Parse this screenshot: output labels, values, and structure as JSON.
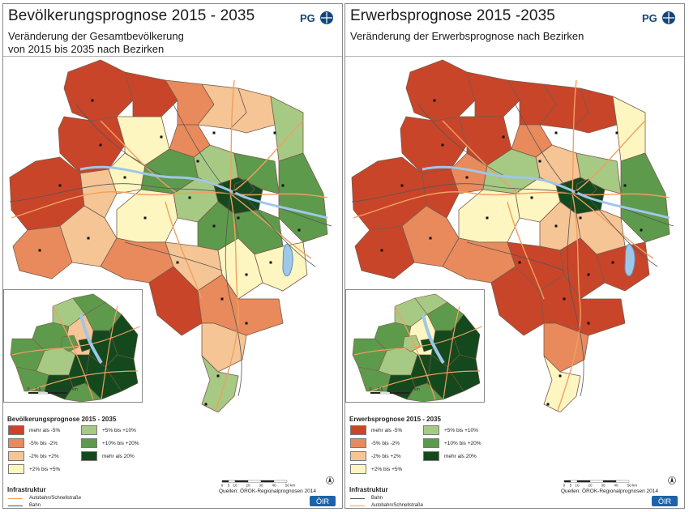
{
  "colors": {
    "c1": "#c8452a",
    "c2": "#e88a5c",
    "c3": "#f5c596",
    "c4": "#fdf6c1",
    "c5": "#a6c984",
    "c6": "#5e9a4c",
    "c7": "#14491e",
    "border": "#7a5a4a",
    "road": "#f0a060",
    "rail": "#555555",
    "water": "#9fc7e8"
  },
  "left": {
    "title": "Bevölkerungsprognose 2015 - 2035",
    "subtitle_line1": "Veränderung der Gesamtbevölkerung",
    "subtitle_line2": "von 2015 bis 2035 nach Bezirken",
    "logo": "PG",
    "legend_title": "Bevölkerungsprognose 2015 - 2035",
    "infra_title": "Infrastruktur",
    "infra_items": [
      {
        "label": "Autobahn/Schnellstraße",
        "color": "#f0a060"
      },
      {
        "label": "Bahn",
        "color": "#555555"
      }
    ],
    "source": "Quellen: ÖROK-Regionalprognosen 2014",
    "scale_labels": [
      "0",
      "5",
      "10",
      "20",
      "30",
      "40",
      "50 km"
    ],
    "inset_scale_labels": [
      "0",
      "2,5",
      "5",
      "10 km"
    ],
    "oir": "ÖIR"
  },
  "right": {
    "title": "Erwerbsprognose 2015 -2035",
    "subtitle_line1": "Veränderung der Erwerbsprognose nach Bezirken",
    "logo": "PG",
    "legend_title": "Erwerbsprognose 2015 - 2035",
    "infra_title": "Infrastruktur",
    "infra_items": [
      {
        "label": "Bahn",
        "color": "#555555"
      },
      {
        "label": "Autobahn/Schnellstraße",
        "color": "#f0a060"
      }
    ],
    "source": "Quellen: ÖROK-Regionalprognosen 2014",
    "scale_labels": [
      "0",
      "5",
      "10",
      "20",
      "30",
      "40",
      "50 km"
    ],
    "inset_scale_labels": [
      "0",
      "2,5",
      "5",
      "10 km"
    ],
    "oir": "ÖIR"
  },
  "legend_classes": [
    {
      "label": "mehr als -5%",
      "color": "#c8452a"
    },
    {
      "label": "-5% bis -2%",
      "color": "#e88a5c"
    },
    {
      "label": "-2% bis +2%",
      "color": "#f5c596"
    },
    {
      "label": "+2% bis +5%",
      "color": "#fdf6c1"
    },
    {
      "label": "+5% bis +10%",
      "color": "#a6c984"
    },
    {
      "label": "+10% bis +20%",
      "color": "#5e9a4c"
    },
    {
      "label": "mehr als 20%",
      "color": "#14491e"
    }
  ],
  "district_values_left": [
    1,
    1,
    2,
    1,
    1,
    3,
    2,
    4,
    3,
    4,
    5,
    5,
    3,
    6,
    7,
    6,
    6,
    5,
    3,
    6,
    6,
    4,
    2,
    2,
    3,
    4,
    4,
    1,
    2,
    3,
    7,
    5
  ],
  "district_values_right": [
    1,
    1,
    1,
    1,
    1,
    1,
    2,
    1,
    1,
    2,
    3,
    4,
    1,
    5,
    7,
    5,
    6,
    4,
    2,
    3,
    3,
    4,
    2,
    1,
    1,
    1,
    1,
    1,
    1,
    2,
    7,
    4
  ],
  "inset_values_left": [
    5,
    6,
    6,
    7,
    7,
    6,
    3,
    6,
    7,
    7,
    5,
    6,
    7,
    7,
    6,
    6,
    7
  ],
  "inset_values_right": [
    5,
    6,
    5,
    7,
    7,
    6,
    4,
    6,
    7,
    7,
    5,
    6,
    7,
    7,
    6,
    5,
    7
  ]
}
